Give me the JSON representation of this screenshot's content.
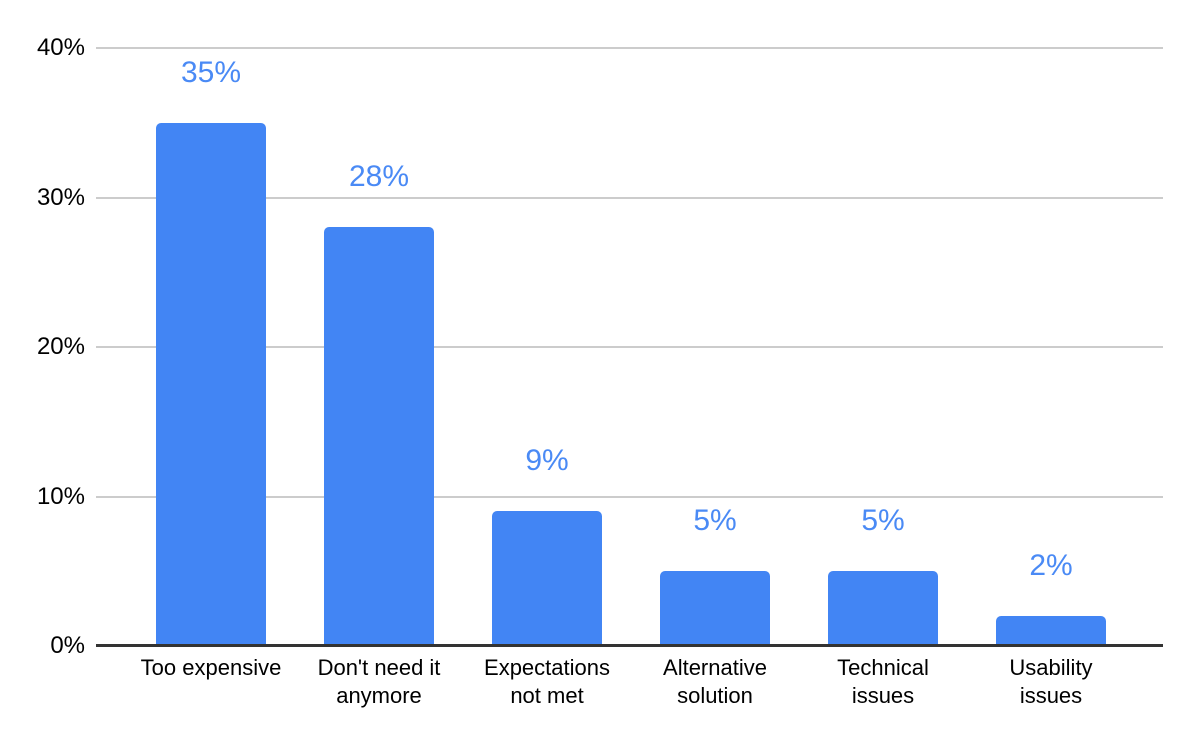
{
  "chart_data": {
    "type": "bar",
    "title": "",
    "xlabel": "",
    "ylabel": "",
    "categories": [
      "Too expensive",
      "Don't need it anymore",
      "Expectations not met",
      "Alternative solution",
      "Technical issues",
      "Usability issues"
    ],
    "category_display_lines": [
      "Too expensive",
      "Don't need it\nanymore",
      "Expectations\nnot met",
      "Alternative\nsolution",
      "Technical\nissues",
      "Usability\nissues"
    ],
    "values": [
      35,
      28,
      9,
      5,
      5,
      2
    ],
    "value_labels": [
      "35%",
      "28%",
      "9%",
      "5%",
      "5%",
      "2%"
    ],
    "ylim": [
      0,
      40
    ],
    "yticks": [
      0,
      10,
      20,
      30,
      40
    ],
    "ytick_labels": [
      "0%",
      "10%",
      "20%",
      "30%",
      "40%"
    ],
    "grid": true,
    "legend": false,
    "colors": {
      "bar": "#4285f4",
      "value_label": "#4a8af5",
      "axis_text": "#000000",
      "gridline": "#cccccc",
      "baseline": "#333333",
      "background": "#ffffff"
    }
  }
}
